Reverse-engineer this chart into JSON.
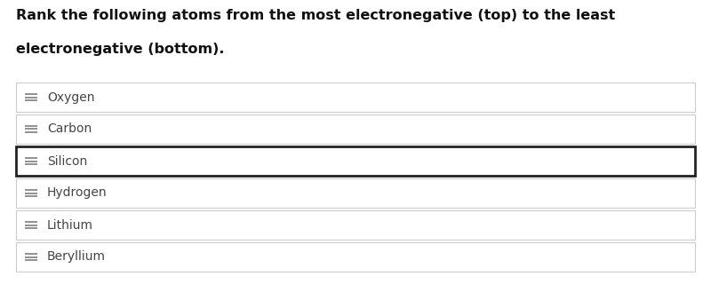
{
  "title_line1": "Rank the following atoms from the most electronegative (top) to the least",
  "title_line2": "electronegative (bottom).",
  "items": [
    "Oxygen",
    "Carbon",
    "Silicon",
    "Hydrogen",
    "Lithium",
    "Beryllium"
  ],
  "highlighted_index": 2,
  "bg_color": "#ffffff",
  "item_bg_color": "#ffffff",
  "item_border_color": "#cccccc",
  "highlighted_border_color": "#222222",
  "title_color": "#111111",
  "item_text_color": "#444444",
  "drag_icon_color": "#888888",
  "title_fontsize": 11.5,
  "item_fontsize": 10.0,
  "fig_width": 8.0,
  "fig_height": 3.2,
  "dpi": 100
}
